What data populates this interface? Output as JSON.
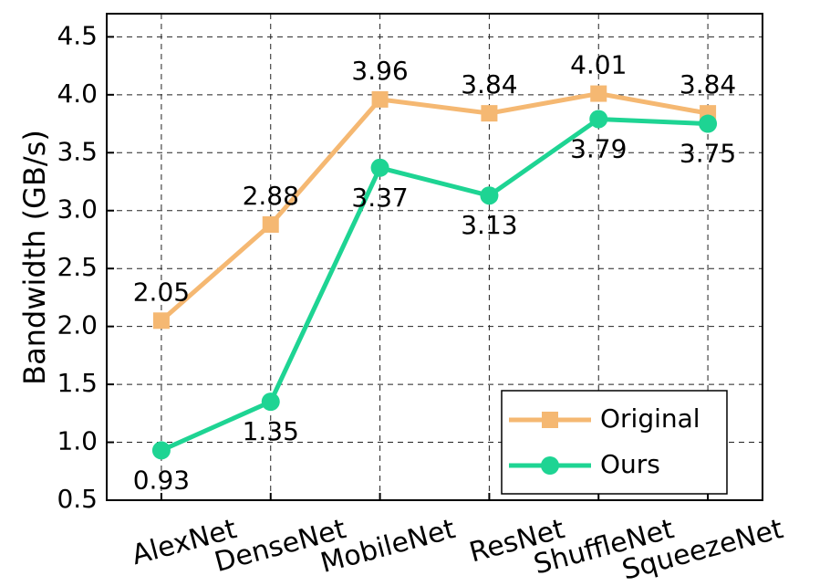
{
  "chart_data": {
    "type": "line",
    "y_label": "Bandwidth (GB/s)",
    "categories": [
      "AlexNet",
      "DenseNet",
      "MobileNet",
      "ResNet",
      "ShuffleNet",
      "SqueezeNet"
    ],
    "series": [
      {
        "name": "Original",
        "color": "#f5b872",
        "marker": "square",
        "values": [
          2.05,
          2.88,
          3.96,
          3.84,
          4.01,
          3.84
        ]
      },
      {
        "name": "Ours",
        "color": "#1ed493",
        "marker": "circle",
        "values": [
          0.93,
          1.35,
          3.37,
          3.13,
          3.79,
          3.75
        ]
      }
    ],
    "ylim": [
      0.5,
      4.7
    ],
    "yticks": [
      0.5,
      {
        "value": 1,
        "label": "1.0"
      },
      1.5,
      {
        "value": 2,
        "label": "2.0"
      },
      2.5,
      {
        "value": 3,
        "label": "3.0"
      },
      3.5,
      {
        "value": 4,
        "label": "4.0"
      },
      4.5
    ],
    "grid": true,
    "legend": "lower right"
  }
}
